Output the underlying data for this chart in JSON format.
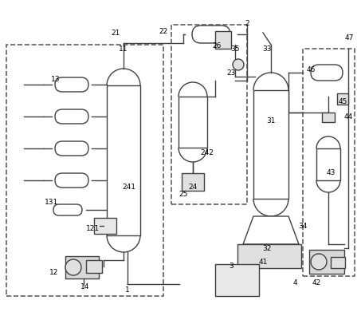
{
  "bg_color": "#ffffff",
  "line_color": "#404040",
  "dashed_color": "#606060",
  "label_color": "#000000",
  "fig_width": 4.53,
  "fig_height": 4.02,
  "dpi": 100
}
